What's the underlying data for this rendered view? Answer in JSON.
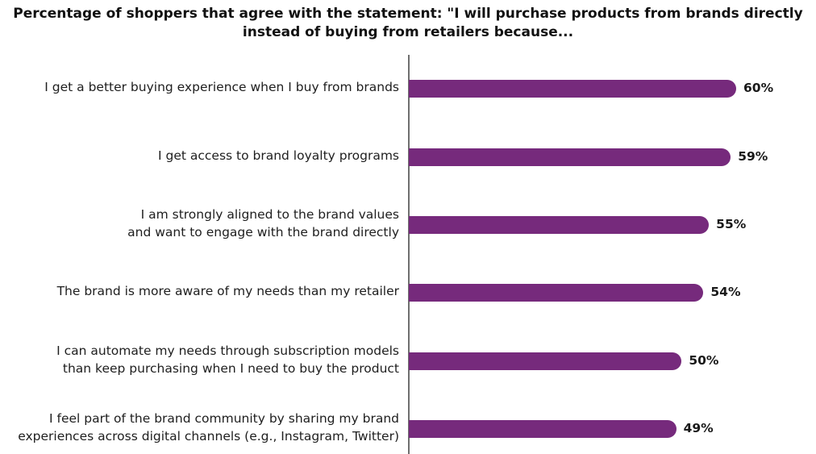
{
  "chart_data": {
    "type": "bar",
    "orientation": "horizontal",
    "title": "Percentage of shoppers that agree with the statement: \"I will purchase products from brands directly instead of buying from retailers because...",
    "title_lines": [
      "Percentage of shoppers that agree with the statement: \"I will purchase products from brands directly",
      "instead of buying from retailers because..."
    ],
    "categories": [
      [
        "I get a better buying experience when I buy from brands"
      ],
      [
        "I get access to brand loyalty programs"
      ],
      [
        "I am strongly aligned to the brand values",
        "and want to engage with the brand directly"
      ],
      [
        "The brand is more aware of my needs than my retailer"
      ],
      [
        "I can automate my needs through subscription models",
        "than keep purchasing when I need to buy the product"
      ],
      [
        "I feel part of the brand community by sharing my brand",
        "experiences across digital channels (e.g., Instagram, Twitter)"
      ]
    ],
    "values": [
      60,
      59,
      55,
      54,
      50,
      49
    ],
    "value_labels": [
      "60%",
      "59%",
      "55%",
      "54%",
      "50%",
      "49%"
    ],
    "xlim": [
      0,
      60
    ],
    "bar_color": "#762a7c",
    "axis_color": "#6f6f6f",
    "grid": false,
    "legend": "none"
  }
}
